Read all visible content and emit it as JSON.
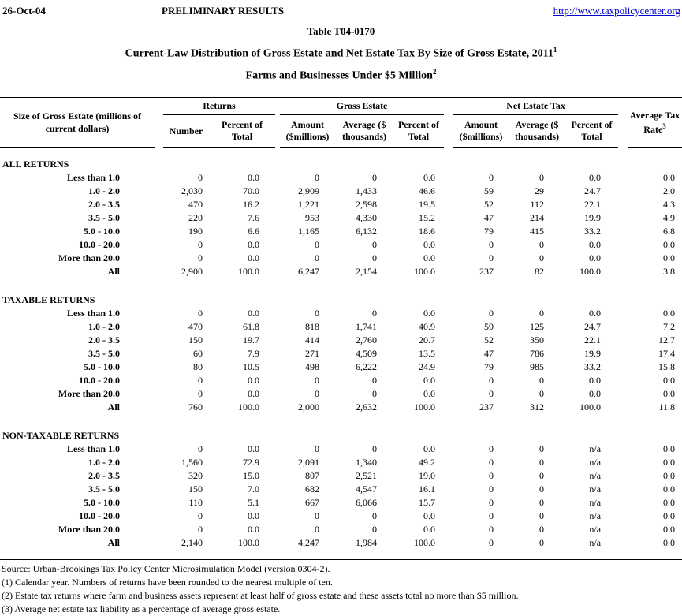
{
  "page": {
    "date": "26-Oct-04",
    "status": "PRELIMINARY RESULTS",
    "url": "http://www.taxpolicycenter.org",
    "link_color": "#0000CC"
  },
  "titles": {
    "table_number": "Table T04-0170",
    "main": "Current-Law Distribution of Gross Estate and Net Estate Tax By Size of Gross Estate, 2011",
    "main_footnote": "1",
    "subtitle": "Farms and Businesses Under $5 Million",
    "subtitle_footnote": "2"
  },
  "table": {
    "row_header": "Size of Gross Estate (millions of current dollars)",
    "groups": [
      {
        "label": "Returns",
        "cols": [
          "Number",
          "Percent of Total"
        ]
      },
      {
        "label": "Gross Estate",
        "cols": [
          "Amount ($millions)",
          "Average ($ thousands)",
          "Percent of Total"
        ]
      },
      {
        "label": "Net Estate Tax",
        "cols": [
          "Amount ($millions)",
          "Average ($ thousands)",
          "Percent of Total"
        ]
      }
    ],
    "last_col": {
      "label": "Average Tax Rate",
      "footnote": "3"
    },
    "sections": [
      {
        "title": "ALL RETURNS",
        "rows": [
          {
            "label": "Less than 1.0",
            "values": [
              "0",
              "0.0",
              "0",
              "0",
              "0.0",
              "0",
              "0",
              "0.0",
              "0.0"
            ]
          },
          {
            "label": "1.0 - 2.0",
            "values": [
              "2,030",
              "70.0",
              "2,909",
              "1,433",
              "46.6",
              "59",
              "29",
              "24.7",
              "2.0"
            ]
          },
          {
            "label": "2.0 - 3.5",
            "values": [
              "470",
              "16.2",
              "1,221",
              "2,598",
              "19.5",
              "52",
              "112",
              "22.1",
              "4.3"
            ]
          },
          {
            "label": "3.5 - 5.0",
            "values": [
              "220",
              "7.6",
              "953",
              "4,330",
              "15.2",
              "47",
              "214",
              "19.9",
              "4.9"
            ]
          },
          {
            "label": "5.0 - 10.0",
            "values": [
              "190",
              "6.6",
              "1,165",
              "6,132",
              "18.6",
              "79",
              "415",
              "33.2",
              "6.8"
            ]
          },
          {
            "label": "10.0 - 20.0",
            "values": [
              "0",
              "0.0",
              "0",
              "0",
              "0.0",
              "0",
              "0",
              "0.0",
              "0.0"
            ]
          },
          {
            "label": "More than 20.0",
            "values": [
              "0",
              "0.0",
              "0",
              "0",
              "0.0",
              "0",
              "0",
              "0.0",
              "0.0"
            ]
          },
          {
            "label": "All",
            "values": [
              "2,900",
              "100.0",
              "6,247",
              "2,154",
              "100.0",
              "237",
              "82",
              "100.0",
              "3.8"
            ]
          }
        ]
      },
      {
        "title": "TAXABLE RETURNS",
        "rows": [
          {
            "label": "Less than 1.0",
            "values": [
              "0",
              "0.0",
              "0",
              "0",
              "0.0",
              "0",
              "0",
              "0.0",
              "0.0"
            ]
          },
          {
            "label": "1.0 - 2.0",
            "values": [
              "470",
              "61.8",
              "818",
              "1,741",
              "40.9",
              "59",
              "125",
              "24.7",
              "7.2"
            ]
          },
          {
            "label": "2.0 - 3.5",
            "values": [
              "150",
              "19.7",
              "414",
              "2,760",
              "20.7",
              "52",
              "350",
              "22.1",
              "12.7"
            ]
          },
          {
            "label": "3.5 - 5.0",
            "values": [
              "60",
              "7.9",
              "271",
              "4,509",
              "13.5",
              "47",
              "786",
              "19.9",
              "17.4"
            ]
          },
          {
            "label": "5.0 - 10.0",
            "values": [
              "80",
              "10.5",
              "498",
              "6,222",
              "24.9",
              "79",
              "985",
              "33.2",
              "15.8"
            ]
          },
          {
            "label": "10.0 - 20.0",
            "values": [
              "0",
              "0.0",
              "0",
              "0",
              "0.0",
              "0",
              "0",
              "0.0",
              "0.0"
            ]
          },
          {
            "label": "More than 20.0",
            "values": [
              "0",
              "0.0",
              "0",
              "0",
              "0.0",
              "0",
              "0",
              "0.0",
              "0.0"
            ]
          },
          {
            "label": "All",
            "values": [
              "760",
              "100.0",
              "2,000",
              "2,632",
              "100.0",
              "237",
              "312",
              "100.0",
              "11.8"
            ]
          }
        ]
      },
      {
        "title": "NON-TAXABLE RETURNS",
        "rows": [
          {
            "label": "Less than 1.0",
            "values": [
              "0",
              "0.0",
              "0",
              "0",
              "0.0",
              "0",
              "0",
              "n/a",
              "0.0"
            ]
          },
          {
            "label": "1.0 - 2.0",
            "values": [
              "1,560",
              "72.9",
              "2,091",
              "1,340",
              "49.2",
              "0",
              "0",
              "n/a",
              "0.0"
            ]
          },
          {
            "label": "2.0 - 3.5",
            "values": [
              "320",
              "15.0",
              "807",
              "2,521",
              "19.0",
              "0",
              "0",
              "n/a",
              "0.0"
            ]
          },
          {
            "label": "3.5 - 5.0",
            "values": [
              "150",
              "7.0",
              "682",
              "4,547",
              "16.1",
              "0",
              "0",
              "n/a",
              "0.0"
            ]
          },
          {
            "label": "5.0 - 10.0",
            "values": [
              "110",
              "5.1",
              "667",
              "6,066",
              "15.7",
              "0",
              "0",
              "n/a",
              "0.0"
            ]
          },
          {
            "label": "10.0 - 20.0",
            "values": [
              "0",
              "0.0",
              "0",
              "0",
              "0.0",
              "0",
              "0",
              "n/a",
              "0.0"
            ]
          },
          {
            "label": "More than 20.0",
            "values": [
              "0",
              "0.0",
              "0",
              "0",
              "0.0",
              "0",
              "0",
              "n/a",
              "0.0"
            ]
          },
          {
            "label": "All",
            "values": [
              "2,140",
              "100.0",
              "4,247",
              "1,984",
              "100.0",
              "0",
              "0",
              "n/a",
              "0.0"
            ]
          }
        ]
      }
    ]
  },
  "footnotes": [
    "Source: Urban-Brookings Tax Policy Center Microsimulation Model (version 0304-2).",
    "(1) Calendar year. Numbers of returns have been rounded to the nearest multiple of ten.",
    "(2) Estate tax returns where farm and business assets represent at least half of gross estate and these assets total no more than $5 million.",
    "(3) Average net estate tax liability as a percentage of average gross estate."
  ]
}
